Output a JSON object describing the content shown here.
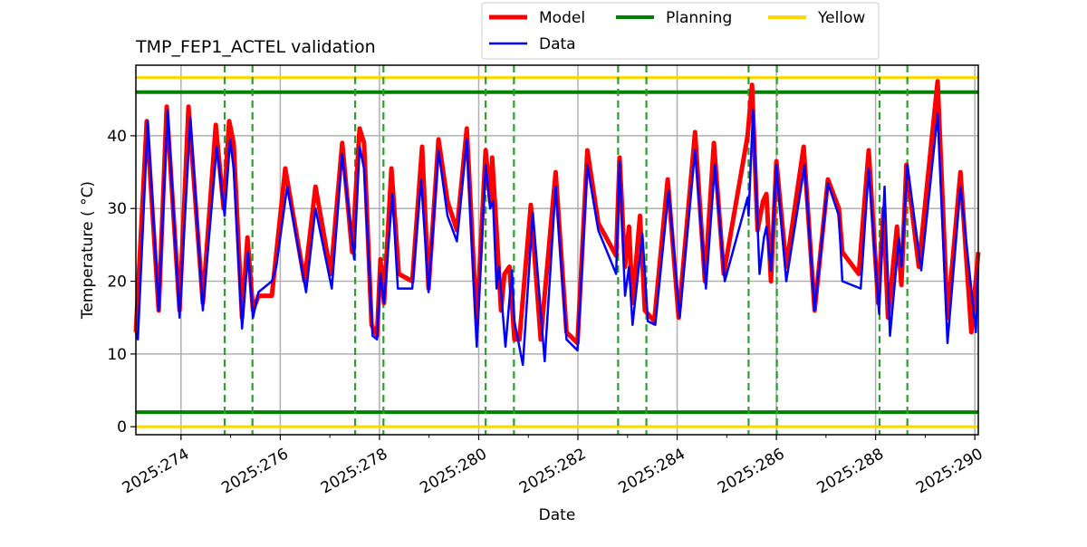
{
  "chart_data": {
    "type": "line",
    "title": "TMP_FEP1_ACTEL validation",
    "xlabel": "Date",
    "ylabel": "Temperature ( °C)",
    "xlim": [
      273.09,
      290.07
    ],
    "ylim": [
      -1.1,
      49.7
    ],
    "grid": true,
    "legend_placement": "top-center-outside",
    "xticks": [
      274,
      276,
      278,
      280,
      282,
      284,
      286,
      288,
      290
    ],
    "xtick_labels": [
      "2025:274",
      "2025:276",
      "2025:278",
      "2025:280",
      "2025:282",
      "2025:284",
      "2025:286",
      "2025:288",
      "2025:290"
    ],
    "xminor": [
      273,
      275,
      277,
      279,
      281,
      283,
      285,
      287,
      289
    ],
    "yticks": [
      0,
      10,
      20,
      30,
      40
    ],
    "ytick_labels": [
      "0",
      "10",
      "20",
      "30",
      "40"
    ],
    "legend": [
      {
        "label": "Model",
        "color": "#ff0000"
      },
      {
        "label": "Data",
        "color": "#0000ff"
      },
      {
        "label": "Planning",
        "color": "#008000"
      },
      {
        "label": "Yellow",
        "color": "#ffd700"
      }
    ],
    "hlines": [
      {
        "name": "Planning",
        "values": [
          46,
          2
        ],
        "color": "#008000"
      },
      {
        "name": "Yellow",
        "values": [
          48,
          0
        ],
        "color": "#ffd700"
      }
    ],
    "vlines": {
      "color": "#2ca02c",
      "x": [
        274.88,
        275.44,
        277.51,
        278.08,
        280.14,
        280.71,
        282.81,
        283.38,
        285.44,
        286.01,
        288.08,
        288.64
      ]
    },
    "series": [
      {
        "name": "Model",
        "color": "#ff0000",
        "points": [
          [
            273.09,
            13
          ],
          [
            273.31,
            42
          ],
          [
            273.55,
            16
          ],
          [
            273.71,
            44
          ],
          [
            273.97,
            16
          ],
          [
            274.15,
            44
          ],
          [
            274.44,
            17
          ],
          [
            274.7,
            41.5
          ],
          [
            274.86,
            30
          ],
          [
            274.97,
            42
          ],
          [
            275.06,
            39
          ],
          [
            275.23,
            15
          ],
          [
            275.34,
            26
          ],
          [
            275.45,
            16
          ],
          [
            275.56,
            18
          ],
          [
            275.83,
            18
          ],
          [
            276.1,
            35.5
          ],
          [
            276.49,
            20
          ],
          [
            276.71,
            33
          ],
          [
            277.02,
            21
          ],
          [
            277.25,
            39
          ],
          [
            277.45,
            24
          ],
          [
            277.6,
            41
          ],
          [
            277.69,
            39
          ],
          [
            277.84,
            14
          ],
          [
            277.95,
            12.5
          ],
          [
            278.02,
            23
          ],
          [
            278.09,
            17
          ],
          [
            278.24,
            35.5
          ],
          [
            278.39,
            21
          ],
          [
            278.66,
            20
          ],
          [
            278.86,
            38.5
          ],
          [
            278.99,
            19
          ],
          [
            279.19,
            39.5
          ],
          [
            279.37,
            31
          ],
          [
            279.56,
            27
          ],
          [
            279.76,
            41
          ],
          [
            279.96,
            14
          ],
          [
            280.14,
            38
          ],
          [
            280.23,
            31
          ],
          [
            280.27,
            37
          ],
          [
            280.36,
            27
          ],
          [
            280.45,
            16
          ],
          [
            280.52,
            21
          ],
          [
            280.62,
            22
          ],
          [
            280.72,
            12
          ],
          [
            280.82,
            12
          ],
          [
            281.05,
            30.5
          ],
          [
            281.25,
            12
          ],
          [
            281.55,
            35
          ],
          [
            281.77,
            13
          ],
          [
            281.99,
            11.5
          ],
          [
            282.19,
            38
          ],
          [
            282.41,
            28
          ],
          [
            282.77,
            23.5
          ],
          [
            282.84,
            37
          ],
          [
            282.95,
            22
          ],
          [
            283.03,
            27.5
          ],
          [
            283.1,
            17
          ],
          [
            283.25,
            29
          ],
          [
            283.35,
            16
          ],
          [
            283.54,
            14.5
          ],
          [
            283.81,
            34
          ],
          [
            284.03,
            15
          ],
          [
            284.36,
            40.5
          ],
          [
            284.56,
            20
          ],
          [
            284.74,
            39
          ],
          [
            284.94,
            21
          ],
          [
            285.42,
            40
          ],
          [
            285.51,
            47
          ],
          [
            285.62,
            27
          ],
          [
            285.73,
            31
          ],
          [
            285.8,
            32
          ],
          [
            285.89,
            20
          ],
          [
            286.0,
            36.5
          ],
          [
            286.2,
            22
          ],
          [
            286.55,
            38.5
          ],
          [
            286.77,
            16
          ],
          [
            287.04,
            34
          ],
          [
            287.26,
            30
          ],
          [
            287.33,
            24
          ],
          [
            287.66,
            21
          ],
          [
            287.86,
            38
          ],
          [
            288.05,
            17
          ],
          [
            288.16,
            30
          ],
          [
            288.25,
            15
          ],
          [
            288.43,
            27.5
          ],
          [
            288.52,
            19.5
          ],
          [
            288.62,
            36
          ],
          [
            288.87,
            22
          ],
          [
            289.25,
            47.5
          ],
          [
            289.45,
            15
          ],
          [
            289.71,
            35
          ],
          [
            289.93,
            13
          ],
          [
            290.07,
            24
          ]
        ]
      },
      {
        "name": "Data",
        "color": "#0000ff",
        "points": [
          [
            273.09,
            13
          ],
          [
            273.13,
            12
          ],
          [
            273.33,
            42
          ],
          [
            273.55,
            16
          ],
          [
            273.73,
            43.5
          ],
          [
            273.97,
            15
          ],
          [
            274.19,
            42.5
          ],
          [
            274.44,
            16
          ],
          [
            274.72,
            38.5
          ],
          [
            274.88,
            29
          ],
          [
            274.99,
            39.5
          ],
          [
            275.06,
            35.5
          ],
          [
            275.23,
            13.5
          ],
          [
            275.35,
            24
          ],
          [
            275.45,
            15
          ],
          [
            275.56,
            18.5
          ],
          [
            275.83,
            20
          ],
          [
            275.92,
            22
          ],
          [
            276.14,
            33
          ],
          [
            276.52,
            18.5
          ],
          [
            276.71,
            30
          ],
          [
            277.04,
            19
          ],
          [
            277.25,
            37.5
          ],
          [
            277.49,
            23
          ],
          [
            277.6,
            38.5
          ],
          [
            277.69,
            35.5
          ],
          [
            277.86,
            12.5
          ],
          [
            277.95,
            12
          ],
          [
            278.02,
            21
          ],
          [
            278.09,
            17
          ],
          [
            278.26,
            32
          ],
          [
            278.37,
            19
          ],
          [
            278.66,
            19
          ],
          [
            278.84,
            34
          ],
          [
            278.99,
            18.5
          ],
          [
            279.19,
            38
          ],
          [
            279.37,
            29
          ],
          [
            279.56,
            25.5
          ],
          [
            279.76,
            39.5
          ],
          [
            279.96,
            11
          ],
          [
            280.14,
            36
          ],
          [
            280.23,
            30
          ],
          [
            280.29,
            31
          ],
          [
            280.36,
            19
          ],
          [
            280.41,
            22
          ],
          [
            280.54,
            11
          ],
          [
            280.67,
            21.5
          ],
          [
            280.72,
            14.5
          ],
          [
            280.89,
            8.5
          ],
          [
            281.09,
            29.5
          ],
          [
            281.33,
            9
          ],
          [
            281.55,
            33
          ],
          [
            281.77,
            12
          ],
          [
            281.99,
            10.5
          ],
          [
            282.19,
            36
          ],
          [
            282.41,
            27
          ],
          [
            282.77,
            21
          ],
          [
            282.84,
            36.5
          ],
          [
            282.95,
            18
          ],
          [
            283.03,
            22
          ],
          [
            283.1,
            14
          ],
          [
            283.3,
            26.5
          ],
          [
            283.41,
            14.5
          ],
          [
            283.56,
            14
          ],
          [
            283.83,
            32.5
          ],
          [
            284.05,
            15
          ],
          [
            284.36,
            38
          ],
          [
            284.58,
            19
          ],
          [
            284.76,
            36
          ],
          [
            284.96,
            20
          ],
          [
            285.42,
            31.5
          ],
          [
            285.44,
            29
          ],
          [
            285.53,
            43.5
          ],
          [
            285.66,
            21
          ],
          [
            285.75,
            26
          ],
          [
            285.8,
            27.5
          ],
          [
            285.89,
            21.5
          ],
          [
            286.0,
            36
          ],
          [
            286.2,
            20
          ],
          [
            286.57,
            36
          ],
          [
            286.77,
            16
          ],
          [
            287.04,
            33.5
          ],
          [
            287.26,
            29
          ],
          [
            287.33,
            20
          ],
          [
            287.7,
            19
          ],
          [
            287.86,
            35.5
          ],
          [
            288.07,
            15.5
          ],
          [
            288.18,
            33
          ],
          [
            288.29,
            12.5
          ],
          [
            288.47,
            26
          ],
          [
            288.52,
            22
          ],
          [
            288.64,
            36
          ],
          [
            288.92,
            21.5
          ],
          [
            289.25,
            43
          ],
          [
            289.45,
            11.5
          ],
          [
            289.71,
            33
          ],
          [
            290.02,
            13
          ],
          [
            290.07,
            22
          ]
        ]
      }
    ]
  }
}
